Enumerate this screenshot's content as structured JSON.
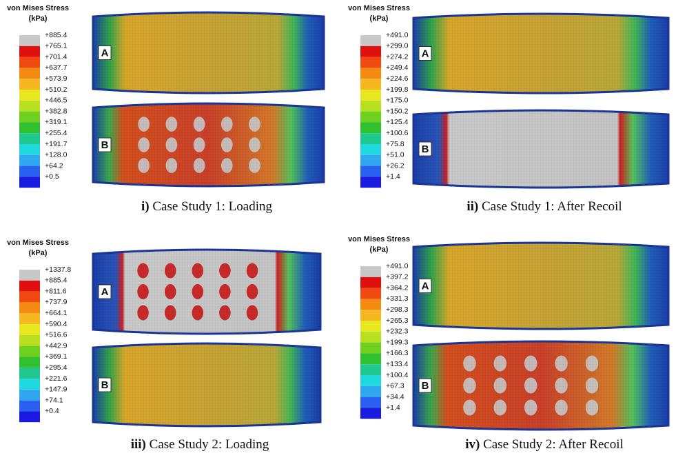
{
  "panels": [
    {
      "legend_title": "von Mises Stress",
      "legend_unit": "(kPa)",
      "legend_labels": [
        "+885.4",
        "+765.1",
        "+701.4",
        "+637.7",
        "+573.9",
        "+510.2",
        "+446.5",
        "+382.8",
        "+319.1",
        "+255.4",
        "+191.7",
        "+128.0",
        "+64.2",
        "+0.5"
      ],
      "labels": [
        "A",
        "B"
      ],
      "caption_num": "i)",
      "caption_text": " Case Study 1: Loading"
    },
    {
      "legend_title": "von Mises Stress",
      "legend_unit": "(kPa)",
      "legend_labels": [
        "+491.0",
        "+299.0",
        "+274.2",
        "+249.4",
        "+224.6",
        "+199.8",
        "+175.0",
        "+150.2",
        "+125.4",
        "+100.6",
        "+75.8",
        "+51.0",
        "+26.2",
        "+1.4"
      ],
      "labels": [
        "A",
        "B"
      ],
      "caption_num": "ii)",
      "caption_text": " Case Study 1: After Recoil"
    },
    {
      "legend_title": "von Mises Stress",
      "legend_unit": "(kPa)",
      "legend_labels": [
        "+1337.8",
        "+885.4",
        "+811.6",
        "+737.9",
        "+664.1",
        "+590.4",
        "+516.6",
        "+442.9",
        "+369.1",
        "+295.4",
        "+221.6",
        "+147.9",
        "+74.1",
        "+0.4"
      ],
      "labels": [
        "A",
        "B"
      ],
      "caption_num": "iii)",
      "caption_text": " Case Study 2: Loading"
    },
    {
      "legend_title": "von Mises Stress",
      "legend_unit": "(kPa)",
      "legend_labels": [
        "+491.0",
        "+397.2",
        "+364.2",
        "+331.3",
        "+298.3",
        "+265.3",
        "+232.3",
        "+199.3",
        "+166.3",
        "+133.4",
        "+100.4",
        "+67.3",
        "+34.4",
        "+1.4"
      ],
      "labels": [
        "A",
        "B"
      ],
      "caption_num": "iv)",
      "caption_text": " Case Study 2: After Recoil"
    }
  ]
}
